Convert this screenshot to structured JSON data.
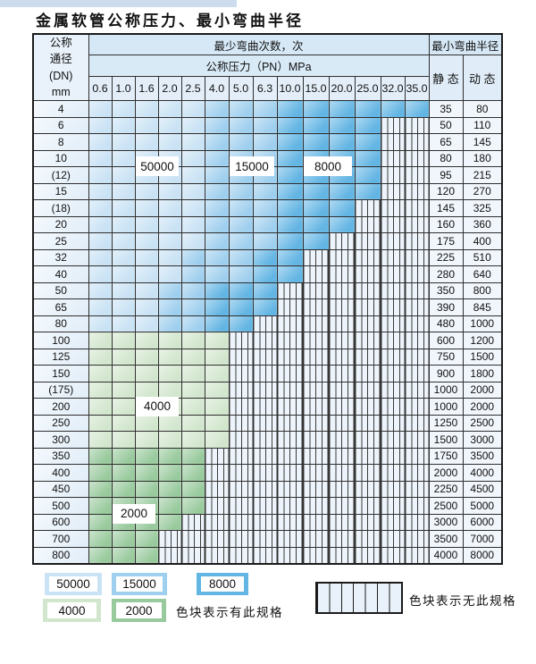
{
  "page": {
    "title": "金属软管公称压力、最小弯曲半径"
  },
  "colors": {
    "band_50000": "#c9e2f4",
    "band_15000": "#9fcfee",
    "band_8000": "#63b5e4",
    "band_4000": "#d2e6cd",
    "band_2000": "#99ca9d",
    "no_spec_fill": "#eef4fb",
    "grid_line": "#2f2f2f",
    "top_strip": "#cddcec"
  },
  "table": {
    "header": {
      "dn_lines": [
        "公称",
        "通径",
        "(DN)",
        "mm"
      ],
      "cycles_label": "最少弯曲次数，次",
      "pressure_label": "公称压力（PN）MPa",
      "radius_label": "最小弯曲半径",
      "static_label": "静 态",
      "dynamic_label": "动 态",
      "pressure_columns": [
        "0.6",
        "1.0",
        "1.6",
        "2.0",
        "2.5",
        "4.0",
        "5.0",
        "6.3",
        "10.0",
        "15.0",
        "20.0",
        "25.0",
        "32.0",
        "35.0"
      ]
    },
    "band_meaning": {
      "b1": "50000",
      "b2": "15000",
      "b3": "8000",
      "g1": "4000",
      "g2": "2000",
      "x": "无此规格"
    },
    "rows": [
      {
        "dn": "4",
        "runs": [
          [
            "b1",
            5
          ],
          [
            "b2",
            3
          ],
          [
            "b3",
            6
          ]
        ],
        "static": "35",
        "dynamic": "80"
      },
      {
        "dn": "6",
        "runs": [
          [
            "b1",
            5
          ],
          [
            "b2",
            3
          ],
          [
            "b3",
            4
          ],
          [
            "x",
            2
          ]
        ],
        "static": "50",
        "dynamic": "110"
      },
      {
        "dn": "8",
        "runs": [
          [
            "b1",
            5
          ],
          [
            "b2",
            3
          ],
          [
            "b3",
            4
          ],
          [
            "x",
            2
          ]
        ],
        "static": "65",
        "dynamic": "145"
      },
      {
        "dn": "10",
        "runs": [
          [
            "b1",
            5
          ],
          [
            "b2",
            3
          ],
          [
            "b3",
            4
          ],
          [
            "x",
            2
          ]
        ],
        "static": "80",
        "dynamic": "180"
      },
      {
        "dn": "(12)",
        "runs": [
          [
            "b1",
            5
          ],
          [
            "b2",
            3
          ],
          [
            "b3",
            4
          ],
          [
            "x",
            2
          ]
        ],
        "static": "95",
        "dynamic": "215"
      },
      {
        "dn": "15",
        "runs": [
          [
            "b1",
            5
          ],
          [
            "b2",
            3
          ],
          [
            "b3",
            4
          ],
          [
            "x",
            2
          ]
        ],
        "static": "120",
        "dynamic": "270"
      },
      {
        "dn": "(18)",
        "runs": [
          [
            "b1",
            5
          ],
          [
            "b2",
            3
          ],
          [
            "b3",
            3
          ],
          [
            "x",
            3
          ]
        ],
        "static": "145",
        "dynamic": "325"
      },
      {
        "dn": "20",
        "runs": [
          [
            "b1",
            5
          ],
          [
            "b2",
            3
          ],
          [
            "b3",
            3
          ],
          [
            "x",
            3
          ]
        ],
        "static": "160",
        "dynamic": "360"
      },
      {
        "dn": "25",
        "runs": [
          [
            "b1",
            5
          ],
          [
            "b2",
            3
          ],
          [
            "b3",
            2
          ],
          [
            "x",
            4
          ]
        ],
        "static": "175",
        "dynamic": "400"
      },
      {
        "dn": "32",
        "runs": [
          [
            "b1",
            4
          ],
          [
            "b2",
            3
          ],
          [
            "b3",
            2
          ],
          [
            "x",
            5
          ]
        ],
        "static": "225",
        "dynamic": "510"
      },
      {
        "dn": "40",
        "runs": [
          [
            "b1",
            4
          ],
          [
            "b2",
            3
          ],
          [
            "b3",
            2
          ],
          [
            "x",
            5
          ]
        ],
        "static": "280",
        "dynamic": "640"
      },
      {
        "dn": "50",
        "runs": [
          [
            "b1",
            3
          ],
          [
            "b2",
            2
          ],
          [
            "b3",
            3
          ],
          [
            "x",
            6
          ]
        ],
        "static": "350",
        "dynamic": "800"
      },
      {
        "dn": "65",
        "runs": [
          [
            "b1",
            3
          ],
          [
            "b2",
            2
          ],
          [
            "b3",
            3
          ],
          [
            "x",
            6
          ]
        ],
        "static": "390",
        "dynamic": "845"
      },
      {
        "dn": "80",
        "runs": [
          [
            "b1",
            3
          ],
          [
            "b2",
            2
          ],
          [
            "b3",
            2
          ],
          [
            "x",
            7
          ]
        ],
        "static": "480",
        "dynamic": "1000"
      },
      {
        "dn": "100",
        "runs": [
          [
            "g1",
            6
          ],
          [
            "x",
            8
          ]
        ],
        "static": "600",
        "dynamic": "1200"
      },
      {
        "dn": "125",
        "runs": [
          [
            "g1",
            6
          ],
          [
            "x",
            8
          ]
        ],
        "static": "750",
        "dynamic": "1500"
      },
      {
        "dn": "150",
        "runs": [
          [
            "g1",
            6
          ],
          [
            "x",
            8
          ]
        ],
        "static": "900",
        "dynamic": "1800"
      },
      {
        "dn": "(175)",
        "runs": [
          [
            "g1",
            6
          ],
          [
            "x",
            8
          ]
        ],
        "static": "1000",
        "dynamic": "2000"
      },
      {
        "dn": "200",
        "runs": [
          [
            "g1",
            6
          ],
          [
            "x",
            8
          ]
        ],
        "static": "1000",
        "dynamic": "2000"
      },
      {
        "dn": "250",
        "runs": [
          [
            "g1",
            6
          ],
          [
            "x",
            8
          ]
        ],
        "static": "1250",
        "dynamic": "2500"
      },
      {
        "dn": "300",
        "runs": [
          [
            "g1",
            6
          ],
          [
            "x",
            8
          ]
        ],
        "static": "1500",
        "dynamic": "3000"
      },
      {
        "dn": "350",
        "runs": [
          [
            "g2",
            5
          ],
          [
            "x",
            9
          ]
        ],
        "static": "1750",
        "dynamic": "3500"
      },
      {
        "dn": "400",
        "runs": [
          [
            "g2",
            5
          ],
          [
            "x",
            9
          ]
        ],
        "static": "2000",
        "dynamic": "4000"
      },
      {
        "dn": "450",
        "runs": [
          [
            "g2",
            5
          ],
          [
            "x",
            9
          ]
        ],
        "static": "2250",
        "dynamic": "4500"
      },
      {
        "dn": "500",
        "runs": [
          [
            "g2",
            5
          ],
          [
            "x",
            9
          ]
        ],
        "static": "2500",
        "dynamic": "5000"
      },
      {
        "dn": "600",
        "runs": [
          [
            "g2",
            4
          ],
          [
            "x",
            10
          ]
        ],
        "static": "3000",
        "dynamic": "6000"
      },
      {
        "dn": "700",
        "runs": [
          [
            "g2",
            3
          ],
          [
            "x",
            11
          ]
        ],
        "static": "3500",
        "dynamic": "7000"
      },
      {
        "dn": "800",
        "runs": [
          [
            "g2",
            3
          ],
          [
            "x",
            11
          ]
        ],
        "static": "4000",
        "dynamic": "8000"
      }
    ],
    "overlay_labels": [
      {
        "text": "50000",
        "col_span": [
          2,
          3
        ],
        "row_span": [
          3,
          4
        ]
      },
      {
        "text": "15000",
        "col_span": [
          6,
          7
        ],
        "row_span": [
          3,
          4
        ]
      },
      {
        "text": "8000",
        "col_span": [
          9,
          10
        ],
        "row_span": [
          3,
          4
        ]
      },
      {
        "text": "4000",
        "col_span": [
          2,
          3
        ],
        "row_span": [
          18,
          18
        ]
      },
      {
        "text": "2000",
        "col_span": [
          1,
          2
        ],
        "row_span": [
          24,
          25
        ]
      }
    ]
  },
  "legend": {
    "swatches": [
      {
        "label": "50000",
        "band": "b1"
      },
      {
        "label": "15000",
        "band": "b2"
      },
      {
        "label": "8000",
        "band": "b3"
      },
      {
        "label": "4000",
        "band": "g1"
      },
      {
        "label": "2000",
        "band": "g2"
      }
    ],
    "has_spec_text": "色块表示有此规格",
    "no_spec_text": "色块表示无此规格"
  }
}
